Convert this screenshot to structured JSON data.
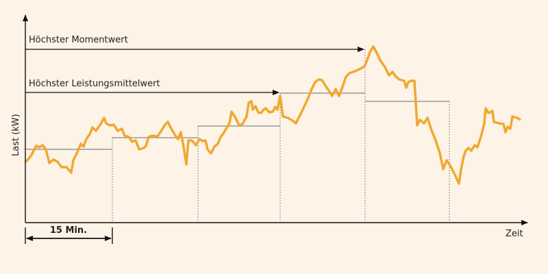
{
  "annotations": {
    "peak_instant": "Höchster Momentwert",
    "peak_average": "Höchster Leistungsmittelwert"
  },
  "axes": {
    "y_label": "Last (kW)",
    "x_label": "Zeit"
  },
  "interval": {
    "label": "15 Min."
  }
}
